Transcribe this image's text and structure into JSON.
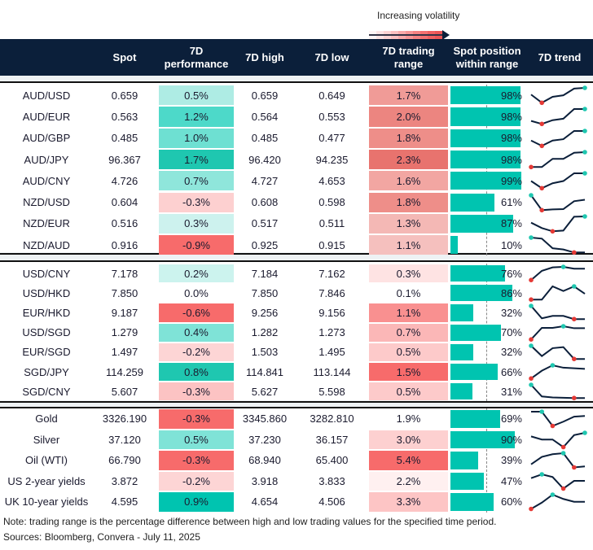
{
  "legend": {
    "label": "Increasing volatility",
    "gradient": [
      "#fff5f5",
      "#fde3e3",
      "#fcd2d2",
      "#fbc0c0",
      "#f9aaaa",
      "#f79696",
      "#f58282",
      "#f37070",
      "#f06060",
      "#ec5555"
    ]
  },
  "header": {
    "pair": "",
    "spot": "Spot",
    "perf": "7D performance",
    "high": "7D high",
    "low": "7D low",
    "range": "7D trading range",
    "position": "Spot position within range",
    "trend": "7D trend"
  },
  "colors": {
    "header": "#0b1f3a",
    "bar": "#00c4b0",
    "trend_line": "#0b1f3a",
    "trend_high": "#1fc7b0",
    "trend_low": "#e53935"
  },
  "sections": [
    {
      "rows": [
        {
          "pair": "AUD/USD",
          "spot": "0.659",
          "perf": "0.5%",
          "perf_color": "#aeece4",
          "high": "0.659",
          "low": "0.649",
          "range": "1.7%",
          "range_color": "#f09b97",
          "position": 98,
          "trend": [
            0.55,
            0,
            0.4,
            0.5,
            0.95,
            1
          ]
        },
        {
          "pair": "AUD/EUR",
          "spot": "0.563",
          "perf": "1.2%",
          "perf_color": "#4dd9c9",
          "high": "0.564",
          "low": "0.553",
          "range": "2.0%",
          "range_color": "#ec8580",
          "position": 98,
          "trend": [
            0.2,
            0,
            0.25,
            0.35,
            1,
            1
          ]
        },
        {
          "pair": "AUD/GBP",
          "spot": "0.485",
          "perf": "1.0%",
          "perf_color": "#6ee0d2",
          "high": "0.485",
          "low": "0.477",
          "range": "1.8%",
          "range_color": "#ee8e89",
          "position": 98,
          "trend": [
            0.36,
            0,
            0.36,
            0.45,
            1,
            1
          ]
        },
        {
          "pair": "AUD/JPY",
          "spot": "96.367",
          "perf": "1.7%",
          "perf_color": "#1fc7b0",
          "high": "96.420",
          "low": "94.235",
          "range": "2.3%",
          "range_color": "#e8736e",
          "position": 98,
          "trend": [
            0,
            0,
            0.55,
            0.55,
            0.96,
            1
          ]
        },
        {
          "pair": "AUD/CNY",
          "spot": "4.726",
          "perf": "0.7%",
          "perf_color": "#8fe6db",
          "high": "4.727",
          "low": "4.653",
          "range": "1.6%",
          "range_color": "#f2a6a2",
          "position": 99,
          "trend": [
            0.48,
            0,
            0.33,
            0.48,
            1,
            1
          ]
        },
        {
          "pair": "NZD/USD",
          "spot": "0.604",
          "perf": "-0.3%",
          "perf_color": "#fdd0d0",
          "high": "0.608",
          "low": "0.598",
          "range": "1.8%",
          "range_color": "#ee8e89",
          "position": 61,
          "trend": [
            1,
            0,
            0.05,
            0.07,
            0.6,
            0.7
          ]
        },
        {
          "pair": "NZD/EUR",
          "spot": "0.516",
          "perf": "0.3%",
          "perf_color": "#cdf2ee",
          "high": "0.517",
          "low": "0.511",
          "range": "1.3%",
          "range_color": "#f4b8b5",
          "position": 87,
          "trend": [
            0.58,
            0.22,
            0,
            0.05,
            0.98,
            1
          ]
        },
        {
          "pair": "NZD/AUD",
          "spot": "0.916",
          "perf": "-0.9%",
          "perf_color": "#f76b6b",
          "high": "0.925",
          "low": "0.915",
          "range": "1.1%",
          "range_color": "#f5c0be",
          "position": 10,
          "trend": [
            1,
            0.93,
            0.28,
            0.2,
            0,
            0
          ]
        }
      ]
    },
    {
      "rows": [
        {
          "pair": "USD/CNY",
          "spot": "7.178",
          "perf": "0.2%",
          "perf_color": "#ccf3ee",
          "high": "7.184",
          "low": "7.162",
          "range": "0.3%",
          "range_color": "#fee3e3",
          "position": 76,
          "trend": [
            0,
            0.7,
            0.96,
            1,
            0.86,
            0.86
          ]
        },
        {
          "pair": "USD/HKD",
          "spot": "7.850",
          "perf": "0.0%",
          "perf_color": "#ffffff",
          "high": "7.850",
          "low": "7.846",
          "range": "0.1%",
          "range_color": "#ffffff",
          "position": 86,
          "trend": [
            0,
            0,
            1,
            0.65,
            1,
            0.44
          ]
        },
        {
          "pair": "EUR/HKD",
          "spot": "9.187",
          "perf": "-0.6%",
          "perf_color": "#f76b6b",
          "high": "9.256",
          "low": "9.156",
          "range": "1.1%",
          "range_color": "#f99090",
          "position": 32,
          "trend": [
            1,
            0.06,
            0.24,
            0.24,
            0,
            0
          ]
        },
        {
          "pair": "USD/SGD",
          "spot": "1.279",
          "perf": "0.4%",
          "perf_color": "#7fe3d7",
          "high": "1.282",
          "low": "1.273",
          "range": "0.7%",
          "range_color": "#fbb7b7",
          "position": 70,
          "trend": [
            0,
            0.88,
            0.88,
            1,
            0.85,
            0.85
          ]
        },
        {
          "pair": "EUR/SGD",
          "spot": "1.497",
          "perf": "-0.2%",
          "perf_color": "#fdd5d5",
          "high": "1.503",
          "low": "1.495",
          "range": "0.5%",
          "range_color": "#fdcaca",
          "position": 32,
          "trend": [
            1,
            0.22,
            0.82,
            0.9,
            0,
            0
          ]
        },
        {
          "pair": "SGD/JPY",
          "spot": "114.259",
          "perf": "0.8%",
          "perf_color": "#1fc7b0",
          "high": "114.841",
          "low": "113.144",
          "range": "1.5%",
          "range_color": "#f76b6b",
          "position": 66,
          "trend": [
            0,
            0.59,
            1,
            0.82,
            0.78,
            0.73
          ]
        },
        {
          "pair": "SGD/CNY",
          "spot": "5.607",
          "perf": "-0.3%",
          "perf_color": "#fcc3c3",
          "high": "5.627",
          "low": "5.598",
          "range": "0.5%",
          "range_color": "#fdcaca",
          "position": 31,
          "trend": [
            1,
            0.12,
            0.04,
            0.02,
            0,
            0
          ]
        }
      ]
    },
    {
      "rows": [
        {
          "pair": "Gold",
          "spot": "3326.190",
          "perf": "-0.3%",
          "perf_color": "#f76b6b",
          "high": "3345.860",
          "low": "3282.810",
          "range": "1.9%",
          "range_color": "#ffffff",
          "position": 69,
          "trend": [
            1,
            1,
            0,
            0.3,
            0.65,
            0.7
          ]
        },
        {
          "pair": "Silver",
          "spot": "37.120",
          "perf": "0.5%",
          "perf_color": "#7fe3d7",
          "high": "37.230",
          "low": "36.157",
          "range": "3.0%",
          "range_color": "#fdd0d0",
          "position": 90,
          "trend": [
            0.75,
            0.53,
            0.53,
            0,
            0.84,
            1
          ]
        },
        {
          "pair": "Oil (WTI)",
          "spot": "66.790",
          "perf": "-0.3%",
          "perf_color": "#f76b6b",
          "high": "68.940",
          "low": "65.400",
          "range": "5.4%",
          "range_color": "#f76b6b",
          "position": 39,
          "trend": [
            0.22,
            0.74,
            0.93,
            1,
            0,
            0.07
          ]
        },
        {
          "pair": "US 2-year yields",
          "spot": "3.872",
          "perf": "-0.2%",
          "perf_color": "#fdd5d5",
          "high": "3.918",
          "low": "3.833",
          "range": "2.2%",
          "range_color": "#fff0f0",
          "position": 47,
          "trend": [
            0.73,
            1,
            0.81,
            0,
            0.54,
            0.54
          ]
        },
        {
          "pair": "UK 10-year yields",
          "spot": "4.595",
          "perf": "0.9%",
          "perf_color": "#00c4b0",
          "high": "4.654",
          "low": "4.506",
          "range": "3.3%",
          "range_color": "#fdc5c5",
          "position": 60,
          "trend": [
            0,
            0.44,
            1,
            0.7,
            0.5,
            0.5
          ]
        }
      ]
    }
  ],
  "footer": {
    "note": "Note: trading range is the percentage difference between high and low trading values for the specified time period.",
    "sources": "Sources: Bloomberg, Convera - July 11, 2025"
  }
}
